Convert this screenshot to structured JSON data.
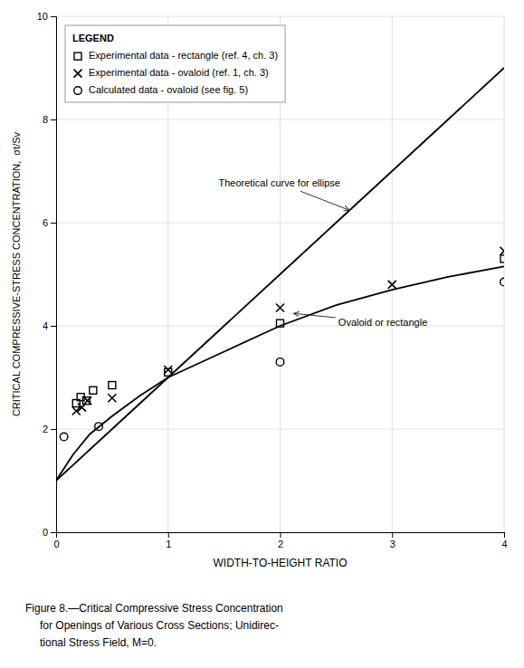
{
  "chart_data": {
    "type": "line",
    "xlabel": "WIDTH-TO-HEIGHT RATIO",
    "ylabel": "CRITICAL COMPRESSIVE-STRESS CONCENTRATION,  σt/Sv",
    "caption": [
      "Figure 8.—Critical Compressive Stress Concentration",
      "for Openings of Various Cross Sections; Unidirec-",
      "tional Stress Field, M=0."
    ],
    "xlim": [
      0,
      4
    ],
    "ylim": [
      0,
      10
    ],
    "xticks": [
      0,
      1,
      2,
      3,
      4
    ],
    "yticks": [
      0,
      2,
      4,
      6,
      8,
      10
    ],
    "grid": true,
    "legend": "upper left",
    "legend_title": "LEGEND",
    "series": [
      {
        "type": "line",
        "color": "#000000",
        "line_style": "solid",
        "x": [
          0.0,
          0.5,
          1.0,
          1.5,
          2.0,
          2.5,
          3.0,
          3.5,
          4.0
        ],
        "values": [
          1.0,
          2.0,
          3.0,
          4.0,
          5.0,
          6.0,
          7.0,
          8.0,
          9.0
        ]
      },
      {
        "type": "line",
        "color": "#000000",
        "line_style": "solid",
        "x": [
          0.0,
          0.15,
          0.3,
          0.5,
          0.75,
          1.0,
          1.5,
          2.0,
          2.5,
          3.0,
          3.5,
          4.0
        ],
        "values": [
          1.0,
          1.5,
          1.9,
          2.25,
          2.65,
          3.0,
          3.5,
          4.0,
          4.4,
          4.7,
          4.95,
          5.15
        ]
      },
      {
        "name": "Experimental data - rectangle (ref. 4, ch. 3)",
        "type": "scatter",
        "marker": "square",
        "color": "#000000",
        "x": [
          0.18,
          0.22,
          0.27,
          0.33,
          0.5,
          1.0,
          2.0,
          4.0
        ],
        "values": [
          2.5,
          2.62,
          2.55,
          2.75,
          2.85,
          3.1,
          4.05,
          5.3
        ]
      },
      {
        "name": "Experimental data - ovaloid (ref. 1, ch. 3)",
        "type": "scatter",
        "marker": "x",
        "color": "#000000",
        "x": [
          0.18,
          0.23,
          0.28,
          0.5,
          1.0,
          2.0,
          3.0,
          4.0
        ],
        "values": [
          2.35,
          2.42,
          2.55,
          2.6,
          3.15,
          4.35,
          4.8,
          5.45
        ]
      },
      {
        "name": "Calculated data - ovaloid (see fig. 5)",
        "type": "scatter",
        "marker": "circle",
        "color": "#000000",
        "x": [
          0.07,
          0.38,
          2.0,
          4.0
        ],
        "values": [
          1.85,
          2.05,
          3.3,
          4.85
        ]
      }
    ],
    "annotations": [
      {
        "text": "Theoretical curve for ellipse",
        "x": 2.62,
        "y": 6.24,
        "text_x": 1.45,
        "text_y": 6.75
      },
      {
        "text": "Ovaloid or rectangle",
        "x": 2.12,
        "y": 4.24,
        "text_x": 2.52,
        "text_y": 4.05
      }
    ]
  }
}
